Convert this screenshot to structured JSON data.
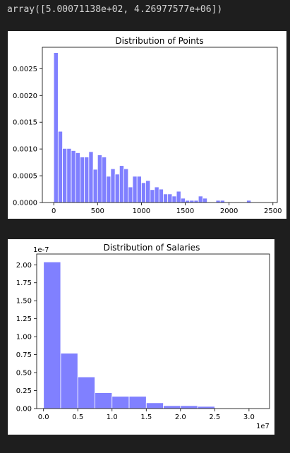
{
  "output": {
    "text": "array([5.00071138e+02, 4.26977577e+06])"
  },
  "colors": {
    "background": "#1e1e1e",
    "output_text": "#d4d4d4",
    "bar_fill": "#8080ff",
    "bar_edge": "#ffffff",
    "figure_bg": "#ffffff"
  },
  "chart_data": [
    {
      "type": "bar",
      "title": "Distribution of Points",
      "xlabel": "",
      "ylabel": "",
      "xlim": [
        -130,
        2550
      ],
      "ylim": [
        0,
        0.0029
      ],
      "bin_width": 50,
      "bin_starts": [
        0,
        50,
        100,
        150,
        200,
        250,
        300,
        350,
        400,
        450,
        500,
        550,
        600,
        650,
        700,
        750,
        800,
        850,
        900,
        950,
        1000,
        1050,
        1100,
        1150,
        1200,
        1250,
        1300,
        1350,
        1400,
        1450,
        1500,
        1550,
        1600,
        1650,
        1700,
        1750,
        1800,
        1850,
        1900,
        1950,
        2000,
        2050,
        2100,
        2150,
        2200
      ],
      "values": [
        0.0028,
        0.00133,
        0.00101,
        0.00101,
        0.00097,
        0.00093,
        0.00085,
        0.00085,
        0.00095,
        0.00062,
        0.00089,
        0.00085,
        0.00049,
        0.00063,
        0.00053,
        0.00069,
        0.00063,
        0.00029,
        0.00049,
        0.00049,
        0.00037,
        0.00041,
        0.00024,
        0.00029,
        0.00025,
        0.00016,
        0.00016,
        0.00012,
        0.00021,
        8e-05,
        4e-05,
        4e-05,
        4e-05,
        0.00012,
        8e-05,
        0,
        0,
        4e-05,
        4e-05,
        0,
        0,
        0,
        0,
        0,
        4e-05
      ],
      "y_ticks": [
        "0.0000",
        "0.0005",
        "0.0010",
        "0.0015",
        "0.0020",
        "0.0025"
      ],
      "y_tick_values": [
        0,
        0.0005,
        0.001,
        0.0015,
        0.002,
        0.0025
      ],
      "x_ticks": [
        "0",
        "500",
        "1000",
        "1500",
        "2000",
        "2500"
      ],
      "x_tick_values": [
        0,
        500,
        1000,
        1500,
        2000,
        2500
      ],
      "grid": false
    },
    {
      "type": "bar",
      "title": "Distribution of Salaries",
      "xlabel": "",
      "ylabel": "",
      "offset_label": "1e-7",
      "x_offset_label": "1e7",
      "xlim": [
        -0.1,
        3.3
      ],
      "ylim": [
        0,
        2.15
      ],
      "bin_width": 0.25,
      "bin_starts": [
        0,
        0.25,
        0.5,
        0.75,
        1.0,
        1.25,
        1.5,
        1.75,
        2.0,
        2.25
      ],
      "values": [
        2.04,
        0.77,
        0.44,
        0.22,
        0.17,
        0.17,
        0.08,
        0.04,
        0.04,
        0.03
      ],
      "y_ticks": [
        "0.00",
        "0.25",
        "0.50",
        "0.75",
        "1.00",
        "1.25",
        "1.50",
        "1.75",
        "2.00"
      ],
      "y_tick_values": [
        0,
        0.25,
        0.5,
        0.75,
        1.0,
        1.25,
        1.5,
        1.75,
        2.0
      ],
      "x_ticks": [
        "0.0",
        "0.5",
        "1.0",
        "1.5",
        "2.0",
        "2.5",
        "3.0"
      ],
      "x_tick_values": [
        0,
        0.5,
        1.0,
        1.5,
        2.0,
        2.5,
        3.0
      ],
      "grid": false
    }
  ]
}
